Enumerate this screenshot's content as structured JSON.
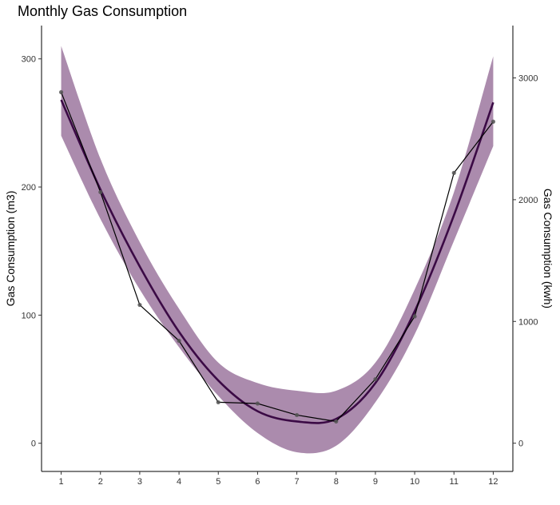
{
  "chart_data": {
    "type": "line",
    "title": "Monthly Gas Consumption",
    "xlabel": "",
    "ylabel": "Gas Consumption (m3)",
    "y2label": "Gas Consumption (kwh)",
    "x": [
      1,
      2,
      3,
      4,
      5,
      6,
      7,
      8,
      9,
      10,
      11,
      12
    ],
    "xlim": [
      0.5,
      12.5
    ],
    "ylim": [
      -22,
      326
    ],
    "y2lim": [
      -232,
      3430
    ],
    "y_ticks": [
      0,
      100,
      200,
      300
    ],
    "y2_ticks": [
      0,
      1000,
      2000,
      3000
    ],
    "grid": false,
    "legend": "none",
    "series": [
      {
        "kind": "observed",
        "values": [
          274,
          196,
          108,
          80,
          32,
          31,
          22,
          17,
          50,
          99,
          211,
          251
        ],
        "color": "#000000"
      },
      {
        "kind": "smooth-fit",
        "values": [
          268,
          198,
          138,
          87,
          49,
          25,
          17,
          19,
          47,
          103,
          178,
          266
        ],
        "color": "#3b0a45"
      },
      {
        "kind": "confidence-band",
        "lower": [
          240,
          175,
          120,
          75,
          37,
          8,
          -7,
          -2,
          32,
          85,
          158,
          232
        ],
        "upper": [
          310,
          222,
          157,
          105,
          63,
          47,
          41,
          41,
          63,
          120,
          196,
          302
        ],
        "color": "#8a5e8e"
      }
    ]
  }
}
